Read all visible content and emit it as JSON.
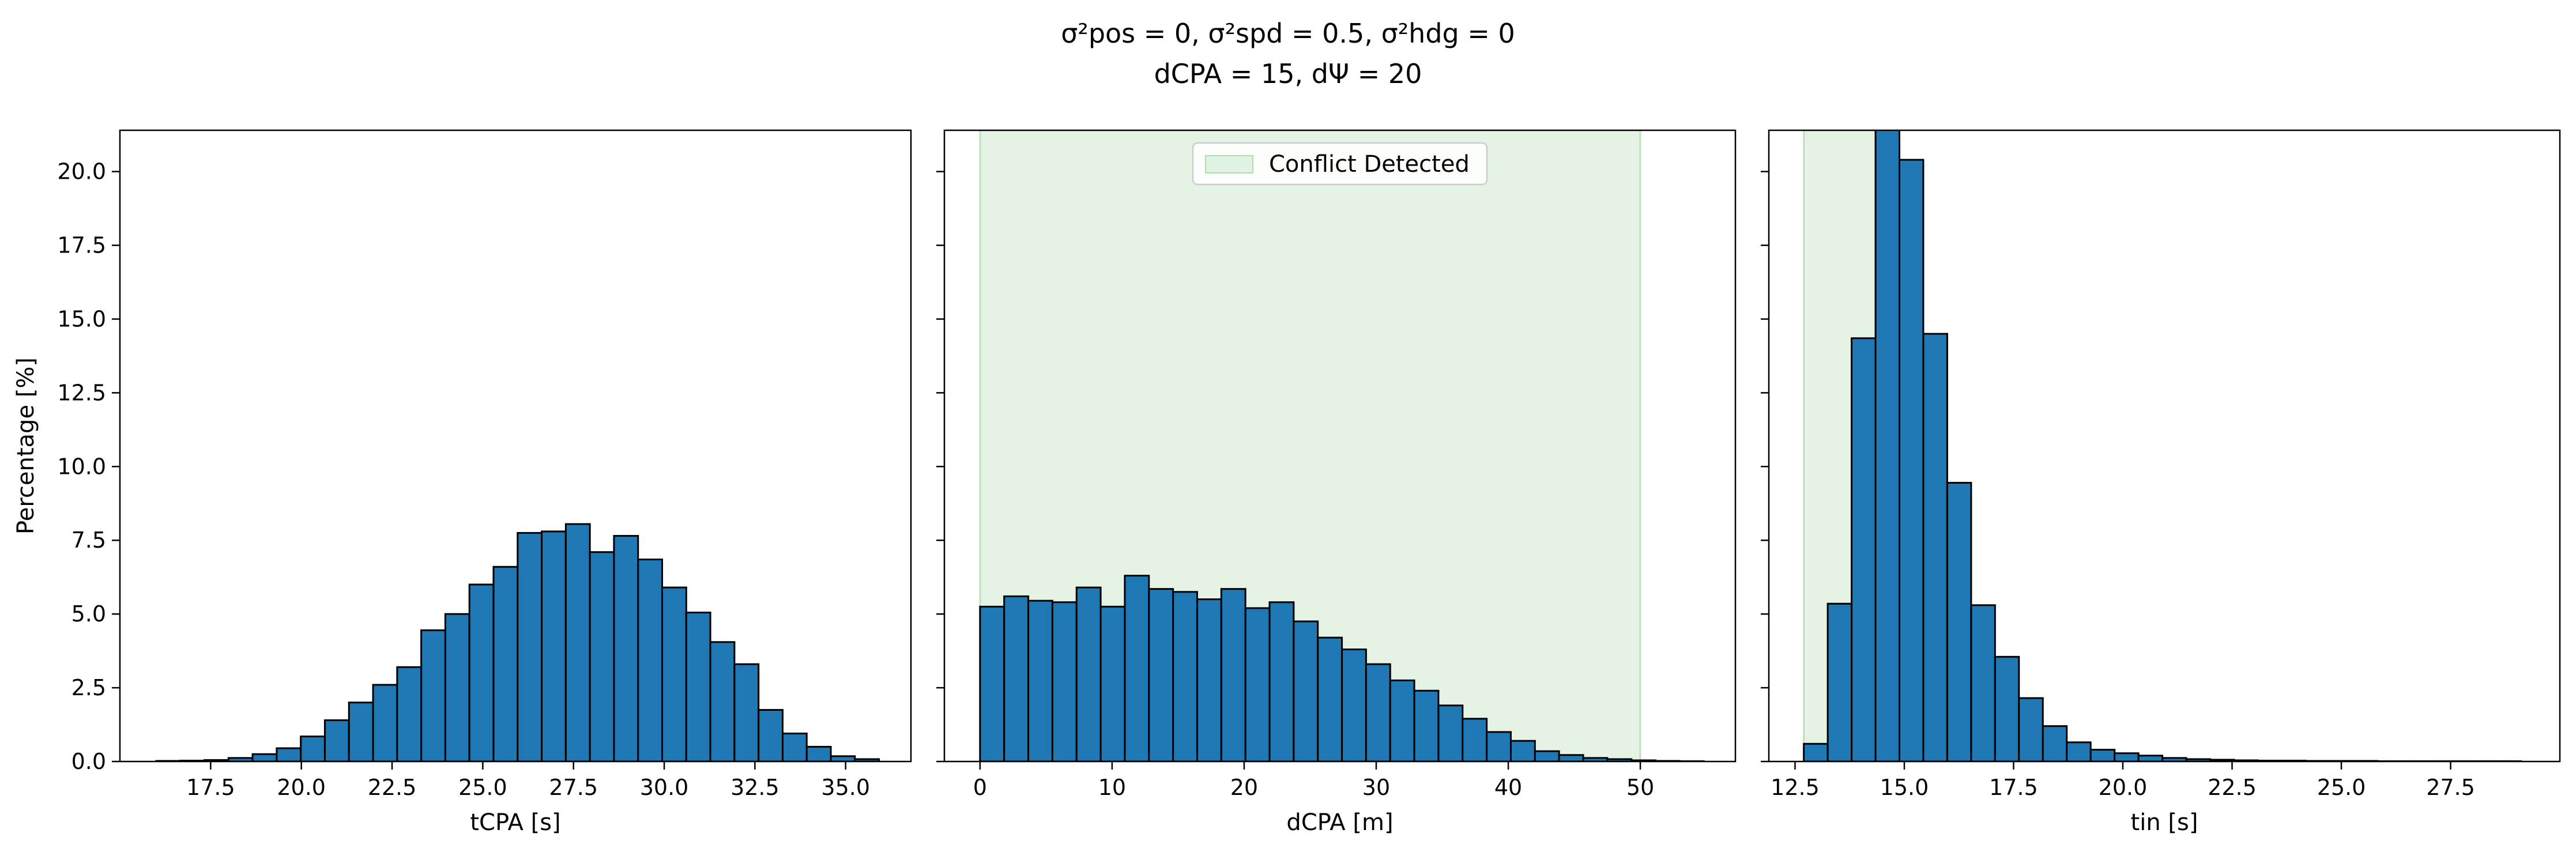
{
  "figure": {
    "title_line1": "σ²pos = 0, σ²spd = 0.5, σ²hdg = 0",
    "title_line2": "dCPA = 15, dΨ = 20"
  },
  "colors": {
    "bar_fill": "#1f77b4",
    "bar_edge": "#000000",
    "span_fill": "#2ca02c",
    "span_alpha": 0.13
  },
  "chart_data": [
    {
      "type": "bar",
      "xlabel": "tCPA [s]",
      "ylabel": "Percentage [%]",
      "xlim": [
        15.0,
        36.8
      ],
      "ylim": [
        0,
        21.4
      ],
      "xticks": [
        "17.5",
        "20.0",
        "22.5",
        "25.0",
        "27.5",
        "30.0",
        "32.5",
        "35.0"
      ],
      "yticks": [
        "0.0",
        "2.5",
        "5.0",
        "7.5",
        "10.0",
        "12.5",
        "15.0",
        "17.5",
        "20.0"
      ],
      "bin_start": 16.0,
      "bin_width": 0.664,
      "values": [
        0.02,
        0.03,
        0.05,
        0.12,
        0.25,
        0.45,
        0.85,
        1.4,
        2.0,
        2.6,
        3.2,
        4.45,
        5.0,
        6.0,
        6.6,
        7.75,
        7.8,
        8.05,
        7.1,
        7.65,
        6.85,
        5.9,
        5.05,
        4.05,
        3.3,
        1.75,
        0.95,
        0.5,
        0.18,
        0.08
      ],
      "legend": null,
      "shaded_span": null
    },
    {
      "type": "bar",
      "xlabel": "dCPA [m]",
      "ylabel": "",
      "xlim": [
        -2.7,
        57.2
      ],
      "ylim": [
        0,
        21.4
      ],
      "xticks": [
        "0",
        "10",
        "20",
        "30",
        "40",
        "50"
      ],
      "yticks": [],
      "bin_start": 0.0,
      "bin_width": 1.827,
      "values": [
        5.25,
        5.6,
        5.45,
        5.4,
        5.9,
        5.25,
        6.3,
        5.85,
        5.75,
        5.5,
        5.85,
        5.2,
        5.4,
        4.75,
        4.2,
        3.8,
        3.3,
        2.75,
        2.4,
        1.9,
        1.45,
        1.0,
        0.7,
        0.35,
        0.22,
        0.12,
        0.08,
        0.04,
        0.02,
        0.01
      ],
      "legend": "Conflict Detected",
      "shaded_span": [
        0,
        50
      ]
    },
    {
      "type": "bar",
      "xlabel": "tin [s]",
      "ylabel": "",
      "xlim": [
        11.9,
        30.0
      ],
      "ylim": [
        0,
        21.4
      ],
      "xticks": [
        "12.5",
        "15.0",
        "17.5",
        "20.0",
        "22.5",
        "25.0",
        "27.5"
      ],
      "yticks": [],
      "bin_start": 12.7,
      "bin_width": 0.547,
      "values": [
        0.6,
        5.35,
        14.35,
        21.5,
        20.4,
        14.5,
        9.45,
        5.3,
        3.55,
        2.15,
        1.2,
        0.65,
        0.4,
        0.28,
        0.2,
        0.12,
        0.08,
        0.06,
        0.04,
        0.03,
        0.03,
        0.02,
        0.02,
        0.02,
        0.01,
        0.01,
        0.01,
        0.01,
        0.01,
        0.01
      ],
      "legend": null,
      "shaded_span": [
        12.7,
        14.4
      ]
    }
  ]
}
